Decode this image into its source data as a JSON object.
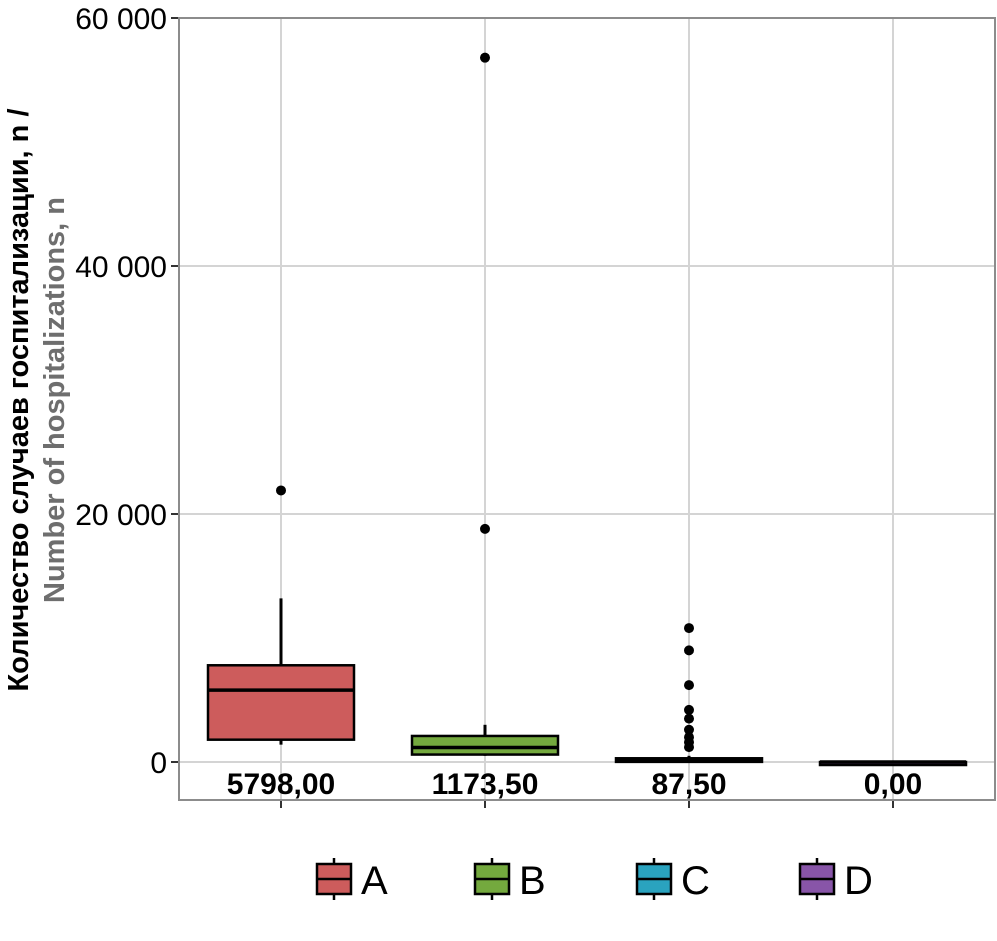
{
  "chart_data": {
    "type": "box",
    "ylabel": "Количество случаев госпитализации, n /",
    "ylabel_secondary": "Number of hospitalizations, n",
    "ylim": [
      -3000,
      60000
    ],
    "yticks": [
      0,
      20000,
      40000,
      60000
    ],
    "ytick_labels": [
      "0",
      "20 000",
      "40 000",
      "60 000"
    ],
    "grid": true,
    "legend_position": "bottom",
    "series": [
      {
        "name": "A",
        "color": "#cd5c5c",
        "q1": 1800,
        "median": 5798,
        "q3": 7800,
        "whisker_low": 1400,
        "whisker_high": 13200,
        "outliers": [
          21900
        ],
        "median_label": "5798,00"
      },
      {
        "name": "B",
        "color": "#74a93e",
        "q1": 600,
        "median": 1173.5,
        "q3": 2100,
        "whisker_low": 500,
        "whisker_high": 3000,
        "outliers": [
          18800,
          56800
        ],
        "median_label": "1173,50"
      },
      {
        "name": "C",
        "color": "#2aa3bf",
        "q1": 10,
        "median": 87.5,
        "q3": 300,
        "whisker_low": 0,
        "whisker_high": 500,
        "outliers": [
          1200,
          1600,
          2000,
          2600,
          3500,
          4200,
          6200,
          9000,
          10800
        ],
        "median_label": "87,50"
      },
      {
        "name": "D",
        "color": "#8855a8",
        "q1": 0,
        "median": 0,
        "q3": 0,
        "whisker_low": 0,
        "whisker_high": 0,
        "outliers": [],
        "median_label": "0,00"
      }
    ]
  }
}
